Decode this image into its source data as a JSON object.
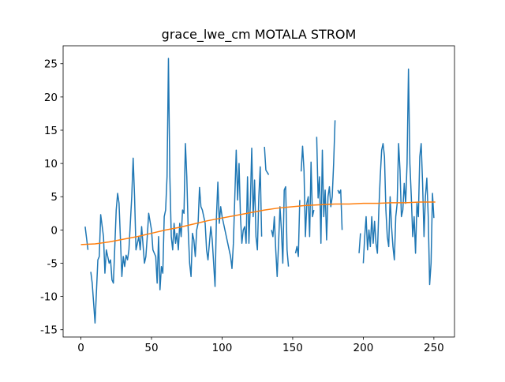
{
  "chart_data": {
    "type": "line",
    "title": "grace_lwe_cm MOTALA STROM",
    "xlim": [
      -12.6,
      264.6
    ],
    "ylim": [
      -16.1,
      27.7
    ],
    "xticks": [
      0,
      50,
      100,
      150,
      200,
      250
    ],
    "yticks": [
      -15,
      -10,
      -5,
      0,
      5,
      10,
      15,
      20,
      25
    ],
    "series": [
      {
        "color": "#1f77b4",
        "x": [
          3,
          5,
          6,
          7,
          8,
          10,
          12,
          13,
          14,
          16,
          17,
          18,
          20,
          21,
          22,
          23,
          25,
          26,
          27,
          29,
          30,
          31,
          32,
          33,
          34,
          36,
          37,
          38,
          39,
          41,
          42,
          43,
          45,
          46,
          47,
          48,
          50,
          51,
          53,
          54,
          55,
          56,
          57,
          58,
          59,
          60,
          61,
          62,
          63,
          64,
          65,
          66,
          67,
          68,
          69,
          70,
          71,
          72,
          73,
          74,
          75,
          76,
          77,
          78,
          79,
          80,
          81,
          82,
          83,
          84,
          85,
          86,
          88,
          89,
          90,
          91,
          92,
          93,
          95,
          96,
          97,
          98,
          99,
          100,
          102,
          104,
          106,
          107,
          108,
          110,
          111,
          112,
          113,
          114,
          115,
          116,
          117,
          118,
          119,
          120,
          121,
          122,
          123,
          124,
          125,
          126,
          127,
          128,
          129,
          130,
          131,
          133,
          134,
          135,
          136,
          137,
          138,
          139,
          140,
          141,
          142,
          143,
          144,
          145,
          146,
          147,
          150,
          152,
          153,
          154,
          155,
          155.5,
          156,
          157,
          158,
          159,
          160,
          161,
          162,
          163,
          164,
          165,
          166,
          167,
          168,
          169,
          170,
          171,
          172,
          173,
          174,
          175,
          176,
          177,
          178,
          179,
          180,
          181,
          182,
          183,
          184,
          185,
          190,
          197,
          198,
          199,
          200,
          201,
          202,
          203,
          204,
          205,
          206,
          207,
          208,
          209,
          210,
          211,
          212,
          213,
          214,
          215,
          216,
          217,
          218,
          219,
          220,
          221,
          222,
          223,
          224,
          225,
          226,
          227,
          228,
          229,
          230,
          231,
          232,
          233,
          234,
          235,
          236,
          237,
          238,
          239,
          240,
          241,
          242,
          243,
          244,
          245,
          246,
          247,
          248,
          249,
          250
        ],
        "values": [
          0.5,
          -3,
          null,
          -6.3,
          -8,
          -14,
          -4.5,
          -4,
          2.3,
          -1,
          -6.5,
          -3,
          -5,
          -4.5,
          -7.5,
          -8,
          3,
          5.5,
          4,
          -7,
          -4,
          -5.5,
          -3.8,
          -4.5,
          -3,
          5,
          10.8,
          5,
          -3,
          -1,
          -3,
          0.5,
          -5,
          -4,
          -1,
          2.5,
          0,
          -3,
          -4,
          -8,
          -1,
          -9,
          -5.5,
          -6.5,
          2,
          3,
          8,
          25.8,
          8,
          -1,
          -3,
          1,
          -2,
          -0.5,
          -3,
          1,
          -1,
          3,
          2.5,
          13,
          8,
          0,
          -5,
          -7,
          -0.5,
          -1.5,
          -4,
          0,
          1,
          6.4,
          3.5,
          3,
          1,
          -3,
          -4.5,
          -2,
          0.5,
          -1.5,
          -8.5,
          2,
          7.2,
          1,
          3.5,
          2,
          0,
          -2,
          -4,
          -5.8,
          -2,
          12,
          4.5,
          10,
          2,
          -2,
          0,
          0.5,
          -2,
          8,
          -2,
          4,
          12.3,
          2,
          7.5,
          -1,
          -3,
          5,
          9.5,
          -1,
          null,
          12.5,
          9,
          8.3,
          null,
          0,
          -1,
          2,
          -3,
          -7,
          -2,
          3.5,
          0,
          -5,
          6,
          6.5,
          -3,
          -5.5,
          null,
          -3.5,
          -2.5,
          -4,
          4.5,
          null,
          8.8,
          12.6,
          9,
          -1,
          4,
          5,
          -1,
          10.2,
          2,
          3,
          null,
          14,
          4.8,
          8,
          -2,
          12,
          2,
          6,
          -1.5,
          5,
          6.5,
          3.5,
          5,
          10,
          16.5,
          null,
          6,
          5.5,
          6,
          0,
          null,
          -3.5,
          -0.5,
          null,
          -5,
          -1,
          2,
          -3,
          0,
          -2.5,
          2,
          -2,
          1.3,
          -2,
          -3.5,
          3,
          8,
          12,
          13,
          11,
          3,
          -1,
          -2.5,
          5,
          0.5,
          -2.5,
          -4.5,
          2,
          4,
          13,
          9,
          2,
          3,
          7,
          4,
          10,
          24.2,
          10,
          5,
          -1,
          2,
          -3.5,
          4,
          2,
          11,
          13,
          7,
          -1,
          5,
          7.8,
          2,
          -8.2,
          -5,
          5.5,
          1.8
        ]
      },
      {
        "color": "#ff7f0e",
        "x": [
          0,
          10,
          20,
          30,
          40,
          50,
          60,
          70,
          80,
          90,
          100,
          110,
          120,
          130,
          140,
          150,
          160,
          170,
          180,
          190,
          200,
          210,
          220,
          230,
          240,
          251
        ],
        "values": [
          -2.2,
          -2.1,
          -1.8,
          -1.4,
          -1.0,
          -0.5,
          0,
          0.4,
          0.9,
          1.4,
          1.8,
          2.2,
          2.6,
          3.0,
          3.3,
          3.5,
          3.7,
          3.8,
          3.9,
          3.9,
          4.0,
          4.0,
          4.1,
          4.1,
          4.2,
          4.2
        ]
      }
    ]
  }
}
